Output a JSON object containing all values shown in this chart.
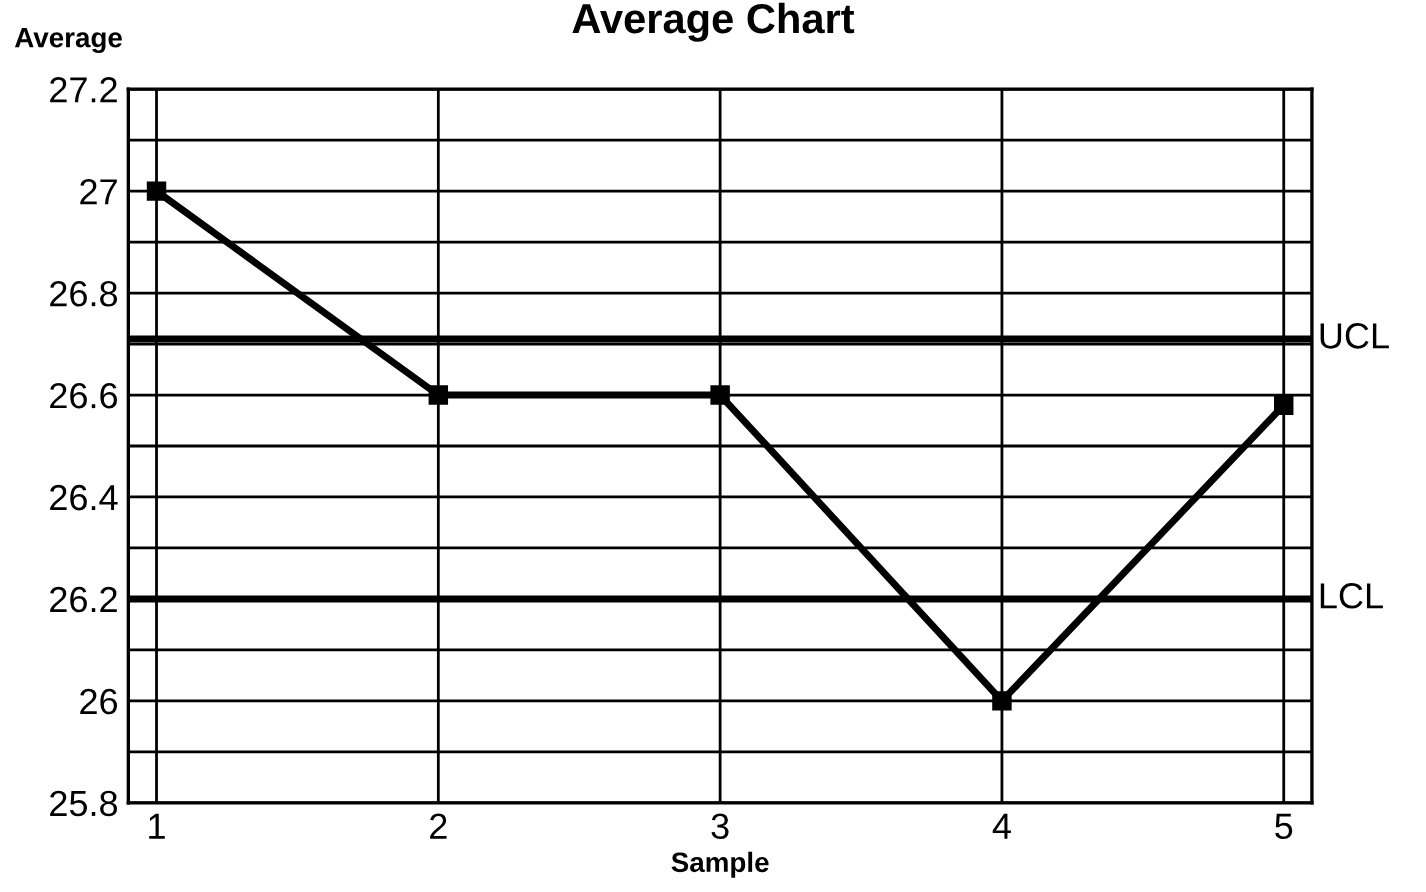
{
  "chart_data": {
    "type": "line",
    "title": "Average Chart",
    "xlabel": "Sample",
    "ylabel": "Average",
    "x": [
      1,
      2,
      3,
      4,
      5
    ],
    "series": [
      {
        "color": "#000000",
        "values": [
          27.0,
          26.6,
          26.6,
          26.0,
          26.58
        ]
      }
    ],
    "xlim": [
      0.9,
      5.1
    ],
    "xticks": [
      1,
      2,
      3,
      4,
      5
    ],
    "ylim": [
      25.8,
      27.2
    ],
    "yticks": [
      25.8,
      {
        "value": 25.9,
        "label": null
      },
      26,
      {
        "value": 26.1,
        "label": null
      },
      26.2,
      {
        "value": 26.3,
        "label": null
      },
      26.4,
      {
        "value": 26.5,
        "label": null
      },
      26.6,
      {
        "value": 26.7,
        "label": null
      },
      26.8,
      {
        "value": 26.9,
        "label": null
      },
      27,
      {
        "value": 27.1,
        "label": null
      },
      27.2
    ],
    "ref_lines": [
      {
        "axis": "y",
        "value": 26.71,
        "label": "UCL",
        "color": "#000000"
      },
      {
        "axis": "y",
        "value": 26.2,
        "label": "LCL",
        "color": "#000000"
      }
    ],
    "grid": true,
    "marker": "square",
    "line_style": "solid",
    "legend": false
  }
}
